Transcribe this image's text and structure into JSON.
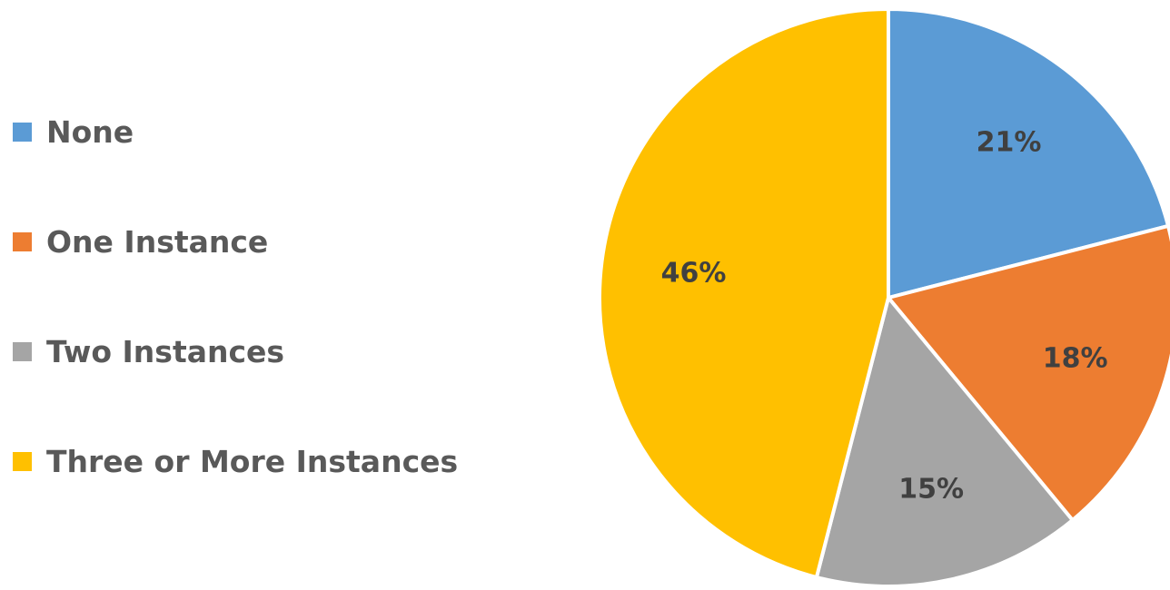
{
  "chart_data": {
    "type": "pie",
    "title": "",
    "legend_position": "left",
    "categories": [
      "None",
      "One Instance",
      "Two Instances",
      "Three or More Instances"
    ],
    "values": [
      21,
      18,
      15,
      46
    ],
    "data_labels": [
      "21%",
      "18%",
      "15%",
      "46%"
    ],
    "colors": [
      "#5B9BD5",
      "#ED7D31",
      "#A5A5A5",
      "#FFC000"
    ]
  }
}
